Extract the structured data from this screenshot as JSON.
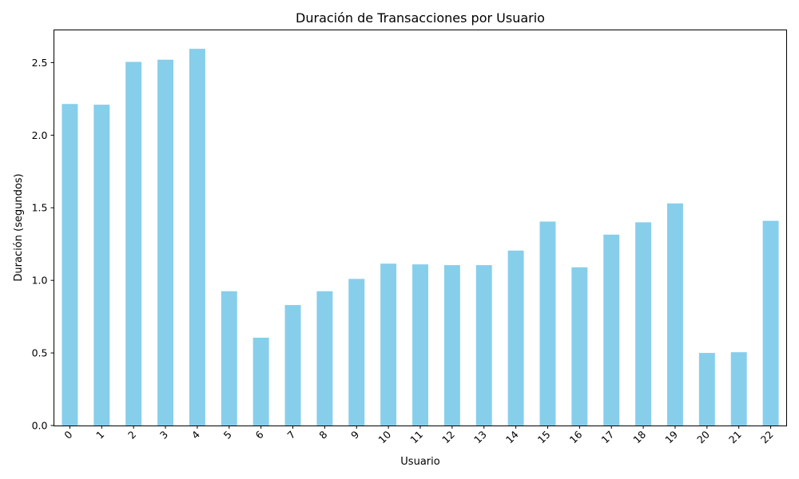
{
  "chart_data": {
    "type": "bar",
    "title": "Duración de Transacciones por Usuario",
    "xlabel": "Usuario",
    "ylabel": "Duración (segundos)",
    "categories": [
      "0",
      "1",
      "2",
      "3",
      "4",
      "5",
      "6",
      "7",
      "8",
      "9",
      "10",
      "11",
      "12",
      "13",
      "14",
      "15",
      "16",
      "17",
      "18",
      "19",
      "20",
      "21",
      "22"
    ],
    "values": [
      2.215,
      2.21,
      2.505,
      2.52,
      2.595,
      0.925,
      0.605,
      0.83,
      0.925,
      1.01,
      1.115,
      1.11,
      1.105,
      1.105,
      1.205,
      1.405,
      1.09,
      1.315,
      1.4,
      1.53,
      0.5,
      0.505,
      1.41
    ],
    "ylim": [
      0,
      2.725
    ],
    "yticks": [
      0.0,
      0.5,
      1.0,
      1.5,
      2.0,
      2.5
    ],
    "ytick_labels": [
      "0.0",
      "0.5",
      "1.0",
      "1.5",
      "2.0",
      "2.5"
    ],
    "bar_color": "#87CEEB",
    "grid": false,
    "legend": false
  }
}
